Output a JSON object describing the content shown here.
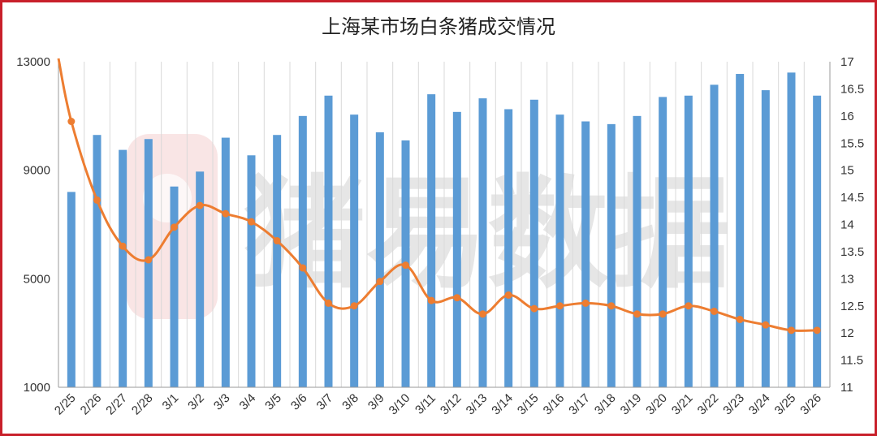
{
  "chart_data": {
    "type": "bar+line",
    "title": "上海某市场白条猪成交情况",
    "categories": [
      "2/25",
      "2/26",
      "2/27",
      "2/28",
      "3/1",
      "3/2",
      "3/3",
      "3/4",
      "3/5",
      "3/6",
      "3/7",
      "3/8",
      "3/9",
      "3/10",
      "3/11",
      "3/12",
      "3/13",
      "3/14",
      "3/15",
      "3/16",
      "3/17",
      "3/18",
      "3/19",
      "3/20",
      "3/21",
      "3/22",
      "3/23",
      "3/24",
      "3/25",
      "3/26"
    ],
    "series": [
      {
        "type": "bar",
        "axis": "left",
        "color": "#5b9bd5",
        "values": [
          8200,
          10300,
          9750,
          10150,
          8400,
          8950,
          10200,
          9550,
          10300,
          11000,
          11750,
          11050,
          10400,
          10100,
          11800,
          11150,
          11650,
          11250,
          11600,
          11050,
          10800,
          10700,
          11000,
          11700,
          11750,
          12150,
          12550,
          11950,
          12600,
          11750
        ]
      },
      {
        "type": "line",
        "axis": "right",
        "color": "#ed7d31",
        "values": [
          15.9,
          14.45,
          13.6,
          13.35,
          13.95,
          14.35,
          14.2,
          14.05,
          13.7,
          13.2,
          12.55,
          12.5,
          12.95,
          13.25,
          12.6,
          12.65,
          12.35,
          12.7,
          12.45,
          12.5,
          12.55,
          12.5,
          12.35,
          12.35,
          12.5,
          12.4,
          12.25,
          12.15,
          12.05,
          12.05
        ]
      }
    ],
    "y_left": {
      "min": 1000,
      "max": 13000,
      "ticks": [
        "13000",
        "9000",
        "5000",
        "1000"
      ]
    },
    "y_right": {
      "min": 11,
      "max": 17,
      "ticks": [
        "17",
        "16.5",
        "16",
        "15.5",
        "15",
        "14.5",
        "14",
        "13.5",
        "13",
        "12.5",
        "12",
        "11.5",
        "11"
      ]
    },
    "grid": "vertical",
    "legend": "none"
  },
  "colors": {
    "frame": "#c8202a",
    "bar": "#5b9bd5",
    "line": "#ed7d31",
    "grid": "#d9d9d9",
    "axis": "#9a9a9a"
  },
  "watermark": {
    "text": "猪易数据"
  }
}
